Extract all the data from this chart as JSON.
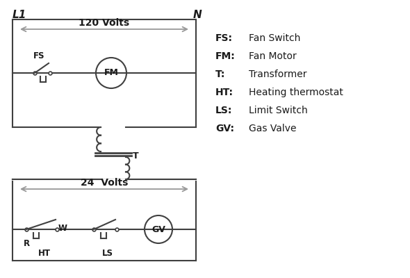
{
  "bg_color": "#ffffff",
  "line_color": "#404040",
  "arrow_color": "#999999",
  "text_color": "#1a1a1a",
  "legend": [
    [
      "FS:",
      "Fan Switch"
    ],
    [
      "FM:",
      "Fan Motor"
    ],
    [
      "T:",
      "Transformer"
    ],
    [
      "HT:",
      "Heating thermostat"
    ],
    [
      "LS:",
      "Limit Switch"
    ],
    [
      "GV:",
      "Gas Valve"
    ]
  ],
  "L1_label": "L1",
  "N_label": "N",
  "volts120": "120 Volts",
  "volts24": "24  Volts",
  "figsize": [
    5.9,
    4.0
  ],
  "dpi": 100
}
